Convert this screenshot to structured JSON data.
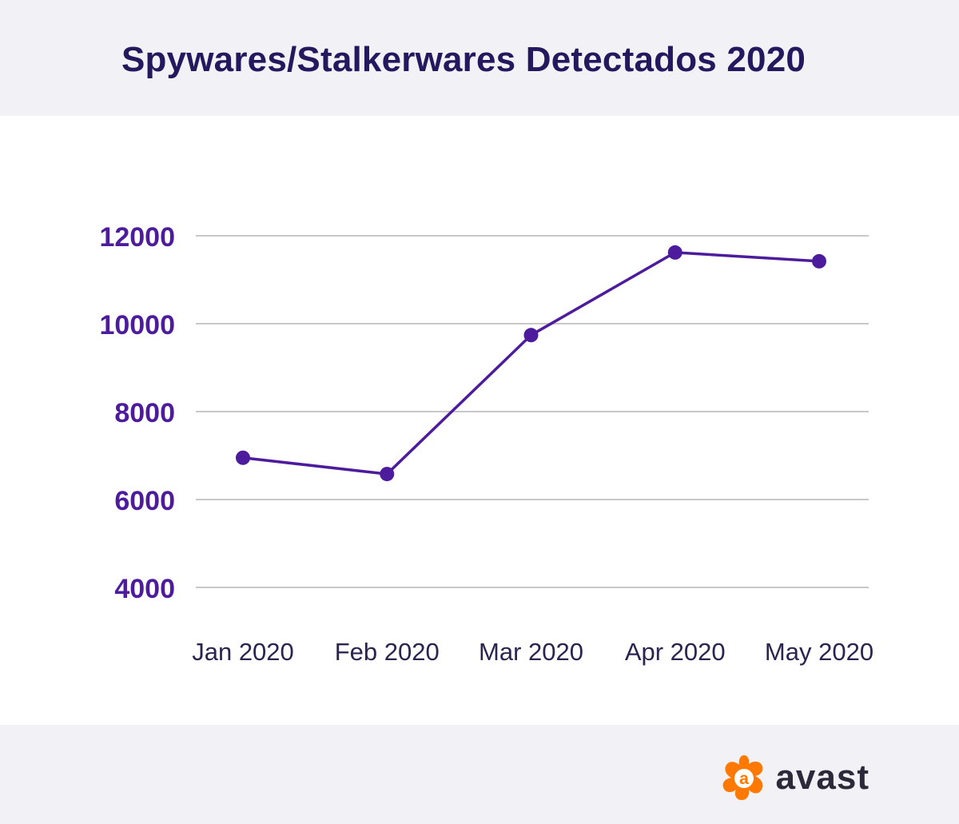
{
  "title": "Spywares/Stalkerwares Detectados 2020",
  "logo": {
    "text": "avast",
    "icon": "avast-logo-icon",
    "color": "#ff7800"
  },
  "colors": {
    "line": "#4d1c9c",
    "y_tick": "#4d1c9c",
    "x_tick": "#2b2350",
    "grid": "#c8c8c8"
  },
  "chart_data": {
    "type": "line",
    "title": "Spywares/Stalkerwares Detectados 2020",
    "xlabel": "",
    "ylabel": "",
    "categories": [
      "Jan 2020",
      "Feb 2020",
      "Mar 2020",
      "Apr 2020",
      "May 2020"
    ],
    "series": [
      {
        "values": [
          6950,
          6580,
          9740,
          11620,
          11420
        ]
      }
    ],
    "ylim": [
      4000,
      12000
    ],
    "yticks": [
      "12000",
      "10000",
      "8000",
      "6000",
      "4000"
    ],
    "grid": true,
    "legend": "none"
  }
}
